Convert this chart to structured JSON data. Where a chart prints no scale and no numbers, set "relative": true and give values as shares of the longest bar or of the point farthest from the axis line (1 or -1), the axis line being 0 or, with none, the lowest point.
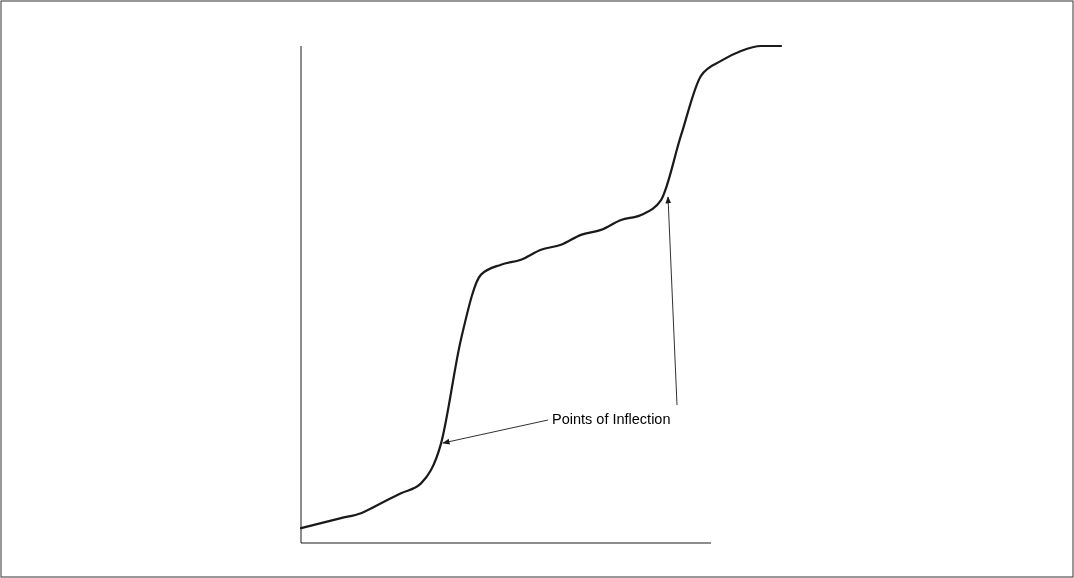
{
  "chart_data": {
    "type": "line",
    "relative": true,
    "categories": [
      null,
      null,
      null,
      null,
      null,
      null,
      null,
      null,
      null,
      null,
      null,
      null,
      null,
      null,
      null,
      null,
      null,
      null,
      null,
      null,
      null,
      null,
      null,
      null,
      null
    ],
    "series": [
      {
        "color": "#1a1a1a",
        "values": [
          0.03,
          0.04,
          0.05,
          0.06,
          0.08,
          0.1,
          0.12,
          0.2,
          0.41,
          0.54,
          0.56,
          0.57,
          0.59,
          0.6,
          0.62,
          0.63,
          0.65,
          0.66,
          0.69,
          0.82,
          0.94,
          0.97,
          0.99,
          1.0,
          1.0
        ]
      }
    ],
    "annotations": [
      "Points of Inflection"
    ],
    "grid": false,
    "marker": "none",
    "line_style": "solid"
  }
}
